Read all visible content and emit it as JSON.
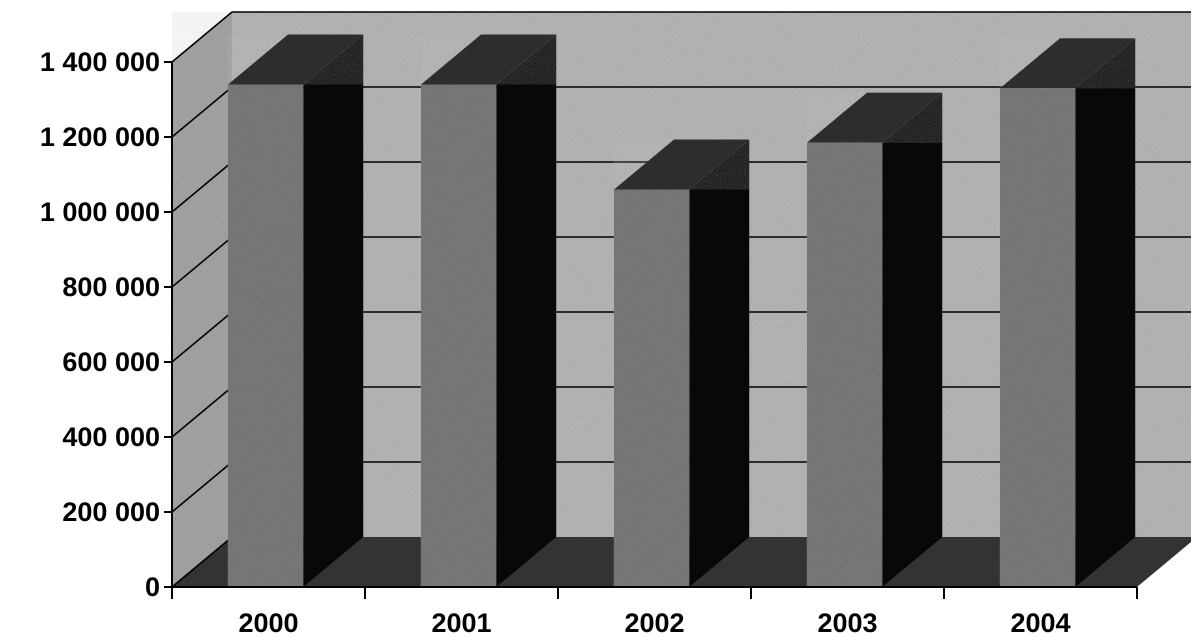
{
  "chart_data": {
    "type": "bar",
    "categories": [
      "2000",
      "2001",
      "2002",
      "2003",
      "2004"
    ],
    "values": [
      1340000,
      1340000,
      1060000,
      1185000,
      1330000
    ],
    "ylim": [
      0,
      1400000
    ],
    "y_ticks": [
      {
        "value": 0,
        "label": "0"
      },
      {
        "value": 200000,
        "label": "200 000"
      },
      {
        "value": 400000,
        "label": "400 000"
      },
      {
        "value": 600000,
        "label": "600 000"
      },
      {
        "value": 800000,
        "label": "800 000"
      },
      {
        "value": 1000000,
        "label": "1 000 000"
      },
      {
        "value": 1200000,
        "label": "1 200 000"
      },
      {
        "value": 1400000,
        "label": "1 400 000"
      }
    ],
    "grid": true,
    "three_d": true,
    "title": "",
    "xlabel": "",
    "ylabel": ""
  },
  "colors": {
    "background_wall": "#b8b8b8",
    "side_wall": "#a6a6a6",
    "floor": "#333333",
    "bar_front": "#7a7a7a",
    "bar_side": "#080808",
    "bar_top": "#2f2f2f",
    "gridline": "#000000",
    "text": "#000000"
  }
}
